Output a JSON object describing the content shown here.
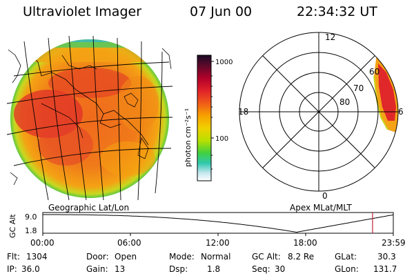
{
  "header": {
    "title": "Ultraviolet Imager",
    "date": "07 Jun 00",
    "time": "22:34:32 UT"
  },
  "colorbar": {
    "label": "photon cm⁻²s⁻¹",
    "ticks": [
      "1000",
      "100"
    ],
    "stops": [
      "#1a0a24",
      "#5a0a2a",
      "#b0002a",
      "#e0202a",
      "#f05a1a",
      "#f7a000",
      "#f0d000",
      "#b8e000",
      "#40d040",
      "#30c8b0",
      "#c8e8f0",
      "#ffffff"
    ]
  },
  "geo_panel": {
    "label": "Geographic Lat/Lon"
  },
  "polar_panel": {
    "label": "Apex MLat/MLT",
    "mlt_labels": [
      "12",
      "18",
      "6",
      "0"
    ],
    "lat_labels": [
      "60",
      "70",
      "80"
    ]
  },
  "altitude_strip": {
    "axis_label": "GC Alt",
    "y_max": "9.0",
    "y_min": "1.8",
    "time_ticks": [
      "00:00",
      "06:00",
      "12:00",
      "18:00",
      "23:59"
    ],
    "marker_hour": 22.58
  },
  "info": {
    "flt_label": "Flt:",
    "flt": "1304",
    "ip_label": "IP:",
    "ip": "36.0",
    "door_label": "Door:",
    "door": "Open",
    "gain_label": "Gain:",
    "gain": "13",
    "mode_label": "Mode:",
    "mode": "Normal",
    "dsp_label": "Dsp:",
    "dsp": "1.8",
    "gcalt_label": "GC Alt:",
    "gcalt": "8.2 Re",
    "seq_label": "Seq:",
    "seq": "30",
    "glat_label": "GLat:",
    "glat": "30.3",
    "glon_label": "GLon:",
    "glon": "131.7"
  }
}
